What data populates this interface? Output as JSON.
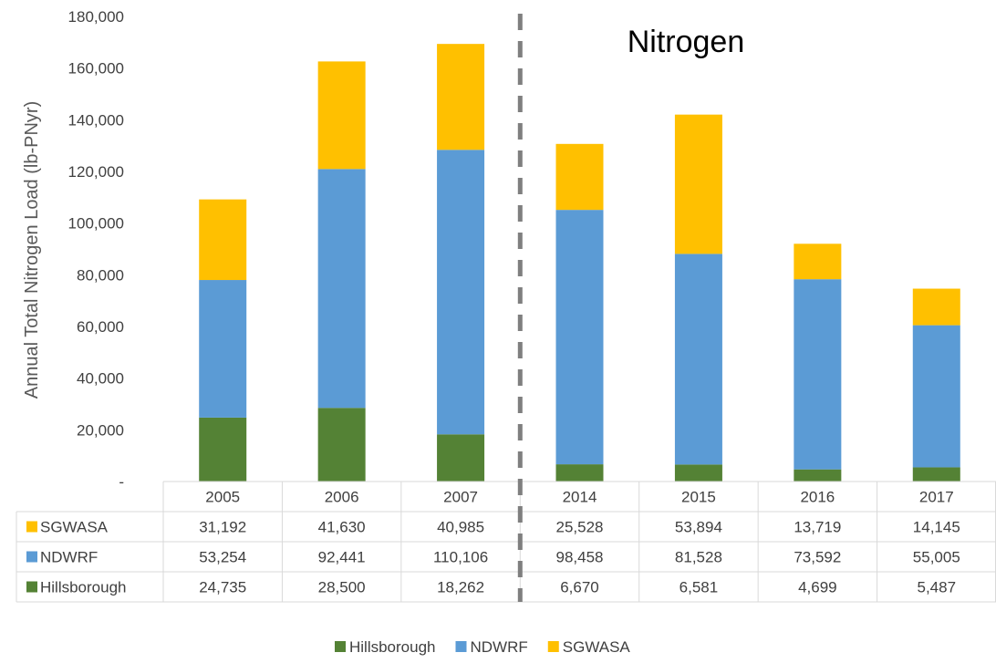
{
  "chart_data": {
    "type": "bar",
    "stacked": true,
    "categories": [
      "2005",
      "2006",
      "2007",
      "2014",
      "2015",
      "2016",
      "2017"
    ],
    "series": [
      {
        "name": "Hillsborough",
        "color": "#548235",
        "values": [
          24735,
          28500,
          18262,
          6670,
          6581,
          4699,
          5487
        ]
      },
      {
        "name": "NDWRF",
        "color": "#5b9bd5",
        "values": [
          53254,
          92441,
          110106,
          98458,
          81528,
          73592,
          55005
        ]
      },
      {
        "name": "SGWASA",
        "color": "#ffc000",
        "values": [
          31192,
          41630,
          40985,
          25528,
          53894,
          13719,
          14145
        ]
      }
    ],
    "table_rows": [
      {
        "series": "SGWASA",
        "color": "#ffc000",
        "cells": [
          "31,192",
          "41,630",
          "40,985",
          "25,528",
          "53,894",
          "13,719",
          "14,145"
        ]
      },
      {
        "series": "NDWRF",
        "color": "#5b9bd5",
        "cells": [
          "53,254",
          "92,441",
          "110,106",
          "98,458",
          "81,528",
          "73,592",
          "55,005"
        ]
      },
      {
        "series": "Hillsborough",
        "color": "#548235",
        "cells": [
          "24,735",
          "28,500",
          "18,262",
          "6,670",
          "6,581",
          "4,699",
          "5,487"
        ]
      }
    ],
    "ylabel": "Annual Total Nitrogen Load (lb-PNyr)",
    "ylim": [
      0,
      180000
    ],
    "yticks": [
      0,
      20000,
      40000,
      60000,
      80000,
      100000,
      120000,
      140000,
      160000,
      180000
    ],
    "ytick_labels": [
      "-",
      "20,000",
      "40,000",
      "60,000",
      "80,000",
      "100,000",
      "120,000",
      "140,000",
      "160,000",
      "180,000"
    ],
    "annotation": "Nitrogen",
    "divider_between": [
      "2007",
      "2014"
    ],
    "grid": false,
    "legend": {
      "position": "bottom",
      "entries": [
        "Hillsborough",
        "NDWRF",
        "SGWASA"
      ]
    }
  }
}
